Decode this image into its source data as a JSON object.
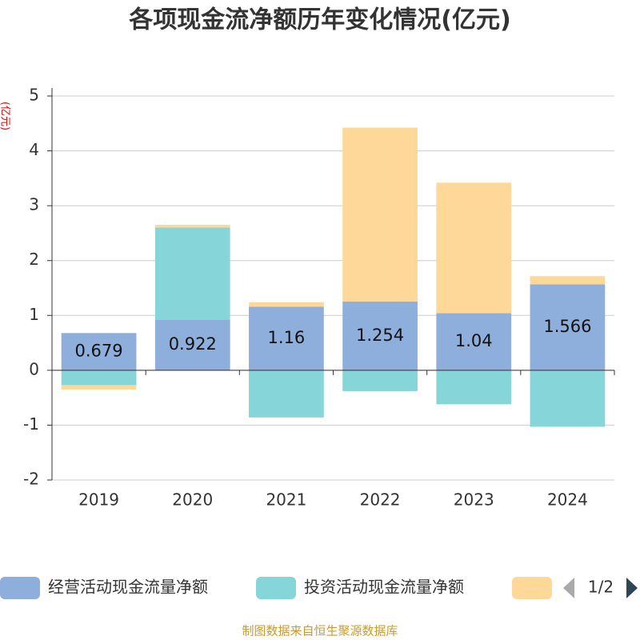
{
  "chart_data": {
    "type": "stacked_bar",
    "title": "各项现金流净额历年变化情况(亿元)",
    "y_label": "(亿元)",
    "categories": [
      "2019",
      "2020",
      "2021",
      "2022",
      "2023",
      "2024"
    ],
    "series": [
      {
        "name": "经营活动现金流量净额",
        "color": "#8eaedb",
        "values": [
          0.679,
          0.922,
          1.16,
          1.254,
          1.04,
          1.566
        ],
        "show_labels": true
      },
      {
        "name": "投资活动现金流量净额",
        "color": "#86d5d8",
        "values": [
          -0.27,
          1.68,
          -0.86,
          -0.38,
          -0.62,
          -1.03
        ]
      },
      {
        "color": "#fdd899",
        "values": [
          -0.08,
          0.05,
          0.08,
          3.17,
          2.38,
          0.15
        ]
      }
    ],
    "ylim": [
      -2,
      5
    ],
    "yticks": [
      -2,
      -1,
      0,
      1,
      2,
      3,
      4,
      5
    ],
    "grid": true,
    "legend_page": "1/2",
    "source": "制图数据来自恒生聚源数据库"
  }
}
